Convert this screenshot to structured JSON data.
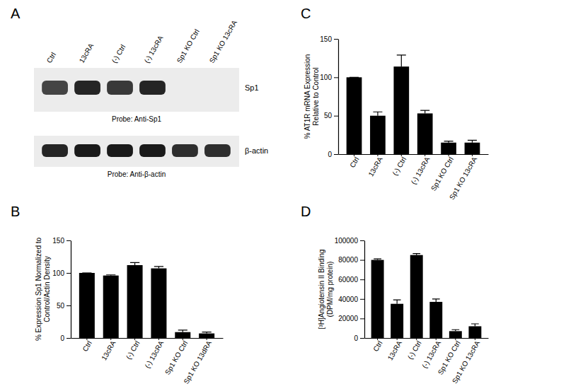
{
  "chart_data": [
    {
      "type": "bar",
      "panel": "B",
      "y_label": [
        "% Expression Sp1 Normalized to",
        "Control/Actin Density"
      ],
      "categories": [
        "Ctrl",
        "13cRA",
        "(-) Ctrl",
        "(-) 13cRA",
        "Sp1 KO Ctrl",
        "Sp1 KO 13dRA"
      ],
      "values": [
        100,
        96,
        112,
        107,
        9,
        7
      ],
      "errors": [
        0,
        1,
        4,
        3,
        3,
        2
      ],
      "color": "#000000",
      "ylim": [
        0,
        150
      ],
      "yticks": [
        0,
        50,
        100,
        150
      ],
      "grid": false
    },
    {
      "type": "bar",
      "panel": "C",
      "y_label": [
        "% AT1R mRNA Expression",
        "Relative to Control"
      ],
      "categories": [
        "Ctrl",
        "13cRA",
        "(-) Ctrl",
        "(-) 13cRA",
        "Sp1 KO Ctrl",
        "Sp1 KO 13cRA"
      ],
      "values": [
        100,
        50,
        114,
        53,
        15,
        15
      ],
      "errors": [
        0,
        5,
        15,
        4,
        2,
        3
      ],
      "color": "#000000",
      "ylim": [
        0,
        150
      ],
      "yticks": [
        0,
        50,
        100,
        150
      ],
      "grid": false
    },
    {
      "type": "bar",
      "panel": "D",
      "y_label": [
        "[³H]Angiotensin II Binding",
        "(DPM/mg protein)"
      ],
      "categories": [
        "Ctrl",
        "13cRA",
        "(-) Ctrl",
        "(-) 13cRA",
        "Sp1 KO Ctrl",
        "Sp1 KO 13cRA"
      ],
      "values": [
        80000,
        35000,
        85000,
        37000,
        7000,
        12000
      ],
      "errors": [
        1000,
        4000,
        1500,
        3000,
        1500,
        2500
      ],
      "color": "#000000",
      "ylim": [
        0,
        100000
      ],
      "yticks": [
        0,
        20000,
        40000,
        60000,
        80000,
        100000
      ],
      "grid": false
    }
  ],
  "blot": {
    "panel": "A",
    "lanes": [
      "Ctrl",
      "13cRA",
      "(-) Ctrl",
      "(-) 13cRA",
      "Sp1 KO Ctrl",
      "Sp1 KO 13cRA"
    ],
    "rows": [
      {
        "label": "Sp1",
        "probe": "Probe: Anti-Sp1",
        "bands": [
          0.8,
          0.95,
          0.85,
          0.95,
          0,
          0
        ]
      },
      {
        "label": "β-actin",
        "probe": "Probe: Anti-β-actin",
        "bands": [
          0.95,
          1,
          1,
          1,
          0.9,
          0.9
        ]
      }
    ]
  }
}
